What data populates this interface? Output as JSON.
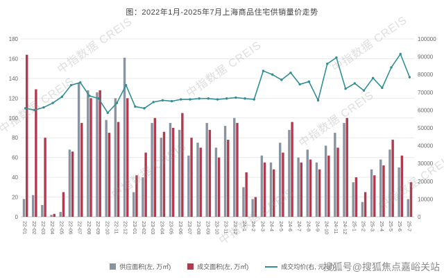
{
  "watermarks": {
    "creis": "中指数据 CREIS",
    "sohu": "搜狐号@搜狐焦点嘉峪关站"
  },
  "chart_data": {
    "type": "bar",
    "subtype": "combo-bar-line",
    "title": "图：2022年1月-2025年7月上海商品住宅供销量价走势",
    "categories": [
      "22-01",
      "22-02",
      "22-03",
      "22-04",
      "22-05",
      "22-06",
      "22-07",
      "22-08",
      "22-09",
      "22-10",
      "22-11",
      "22-12",
      "23-01",
      "23-02",
      "23-03",
      "23-04",
      "23-05",
      "23-06",
      "23-07",
      "23-08",
      "23-09",
      "23-10",
      "23-11",
      "23-12",
      "24-1",
      "24-2",
      "24-3",
      "24-4",
      "24-5",
      "24-6",
      "24-7",
      "24-8",
      "24-9",
      "24-10",
      "24-11",
      "24-12",
      "25-1",
      "25-2",
      "25-3",
      "25-4",
      "25-5",
      "25-6",
      "25-7"
    ],
    "series": [
      {
        "name": "供应面积(左, 万㎡)",
        "type": "bar",
        "axis": "left",
        "color": "#8a93a0",
        "values": [
          18,
          22,
          12,
          2,
          5,
          68,
          135,
          128,
          126,
          98,
          120,
          161,
          25,
          40,
          95,
          80,
          95,
          88,
          62,
          75,
          95,
          70,
          92,
          100,
          30,
          18,
          62,
          55,
          75,
          88,
          60,
          68,
          55,
          72,
          85,
          95,
          35,
          15,
          48,
          58,
          68,
          50,
          18
        ]
      },
      {
        "name": "成交面积(左, 万㎡)",
        "type": "bar",
        "axis": "left",
        "color": "#b23a4e",
        "values": [
          164,
          129,
          80,
          3,
          25,
          66,
          95,
          120,
          128,
          85,
          96,
          120,
          42,
          65,
          100,
          86,
          90,
          105,
          80,
          70,
          88,
          60,
          78,
          95,
          45,
          20,
          55,
          48,
          65,
          96,
          55,
          58,
          48,
          62,
          70,
          100,
          40,
          25,
          42,
          52,
          78,
          62,
          35
        ]
      },
      {
        "name": "成交均价(右, 元/㎡)",
        "type": "line",
        "axis": "right",
        "color": "#2f8e93",
        "values": [
          61000,
          60000,
          61500,
          64000,
          67500,
          74000,
          75500,
          68000,
          66500,
          58500,
          64000,
          74000,
          62000,
          61000,
          64500,
          65500,
          65000,
          66000,
          66000,
          66500,
          66500,
          66000,
          66500,
          67000,
          66500,
          66000,
          82000,
          80000,
          77000,
          81000,
          74500,
          76000,
          65500,
          86000,
          89500,
          72000,
          75000,
          71000,
          78000,
          72500,
          84000,
          91500,
          78500
        ]
      }
    ],
    "left_axis": {
      "min": 0,
      "max": 180,
      "step": 20
    },
    "right_axis": {
      "min": 0,
      "max": 100000,
      "step": 10000
    },
    "grid": true,
    "legend_position": "bottom"
  }
}
